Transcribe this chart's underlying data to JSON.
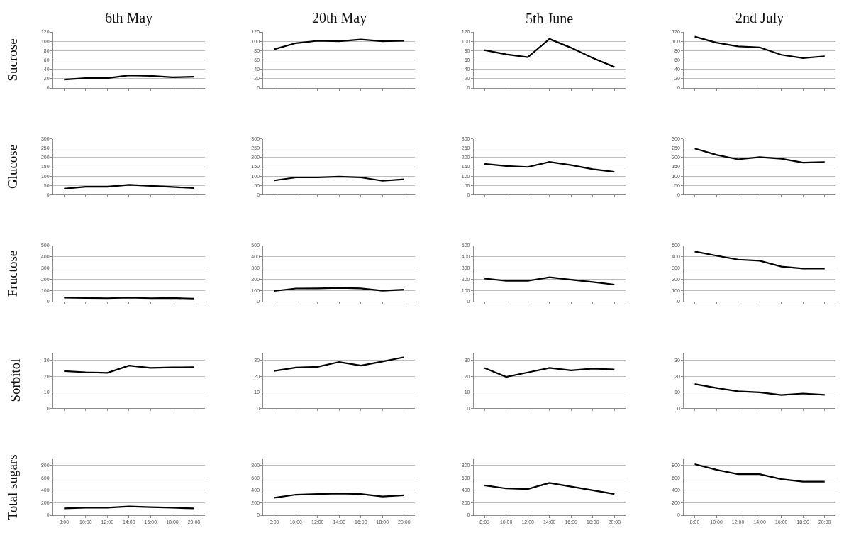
{
  "chart_data": [
    {
      "type": "line",
      "title": "6th May",
      "ylabel": "Sucrose",
      "categories": [
        null,
        null,
        null,
        null,
        null,
        null,
        null
      ],
      "series": [
        {
          "color": "#000000",
          "values": [
            18,
            21,
            21,
            27,
            26,
            23,
            24
          ]
        }
      ],
      "ylim": [
        0,
        120
      ],
      "yticks": [
        0,
        20,
        40,
        60,
        80,
        100,
        120
      ],
      "grid": "y",
      "marker": "none"
    },
    {
      "type": "line",
      "title": "20th May",
      "categories": [
        null,
        null,
        null,
        null,
        null,
        null,
        null
      ],
      "series": [
        {
          "color": "#000000",
          "values": [
            83,
            96,
            101,
            100,
            104,
            100,
            101
          ]
        }
      ],
      "ylim": [
        0,
        120
      ],
      "yticks": [
        0,
        20,
        40,
        60,
        80,
        100,
        120
      ],
      "grid": "y",
      "marker": "none"
    },
    {
      "type": "line",
      "title": "5th June",
      "categories": [
        null,
        null,
        null,
        null,
        null,
        null,
        null
      ],
      "series": [
        {
          "color": "#000000",
          "values": [
            81,
            72,
            66,
            105,
            86,
            64,
            45
          ]
        }
      ],
      "ylim": [
        0,
        120
      ],
      "yticks": [
        0,
        20,
        40,
        60,
        80,
        100,
        120
      ],
      "grid": "y",
      "marker": "none"
    },
    {
      "type": "line",
      "title": "2nd July",
      "categories": [
        null,
        null,
        null,
        null,
        null,
        null,
        null
      ],
      "series": [
        {
          "color": "#000000",
          "values": [
            110,
            97,
            89,
            87,
            71,
            64,
            68
          ]
        }
      ],
      "ylim": [
        0,
        120
      ],
      "yticks": [
        0,
        20,
        40,
        60,
        80,
        100,
        120
      ],
      "grid": "y",
      "marker": "none"
    },
    {
      "type": "line",
      "ylabel": "Glucose",
      "categories": [
        null,
        null,
        null,
        null,
        null,
        null,
        null
      ],
      "series": [
        {
          "color": "#000000",
          "values": [
            33,
            43,
            43,
            54,
            48,
            42,
            36
          ]
        }
      ],
      "ylim": [
        0,
        300
      ],
      "yticks": [
        0,
        50,
        100,
        150,
        200,
        250,
        300
      ],
      "grid": "y",
      "marker": "none"
    },
    {
      "type": "line",
      "categories": [
        null,
        null,
        null,
        null,
        null,
        null,
        null
      ],
      "series": [
        {
          "color": "#000000",
          "values": [
            77,
            93,
            93,
            97,
            93,
            75,
            83
          ]
        }
      ],
      "ylim": [
        0,
        300
      ],
      "yticks": [
        0,
        50,
        100,
        150,
        200,
        250,
        300
      ],
      "grid": "y",
      "marker": "none"
    },
    {
      "type": "line",
      "categories": [
        null,
        null,
        null,
        null,
        null,
        null,
        null
      ],
      "series": [
        {
          "color": "#000000",
          "values": [
            166,
            154,
            149,
            176,
            159,
            137,
            123
          ]
        }
      ],
      "ylim": [
        0,
        300
      ],
      "yticks": [
        0,
        50,
        100,
        150,
        200,
        250,
        300
      ],
      "grid": "y",
      "marker": "none"
    },
    {
      "type": "line",
      "categories": [
        null,
        null,
        null,
        null,
        null,
        null,
        null
      ],
      "series": [
        {
          "color": "#000000",
          "values": [
            248,
            214,
            190,
            202,
            193,
            172,
            175
          ]
        }
      ],
      "ylim": [
        0,
        300
      ],
      "yticks": [
        0,
        50,
        100,
        150,
        200,
        250,
        300
      ],
      "grid": "y",
      "marker": "none"
    },
    {
      "type": "line",
      "ylabel": "Fructose",
      "categories": [
        null,
        null,
        null,
        null,
        null,
        null,
        null
      ],
      "series": [
        {
          "color": "#000000",
          "values": [
            35,
            33,
            30,
            35,
            30,
            32,
            27
          ]
        }
      ],
      "ylim": [
        0,
        500
      ],
      "yticks": [
        0,
        100,
        200,
        300,
        400,
        500
      ],
      "grid": "y",
      "marker": "none"
    },
    {
      "type": "line",
      "categories": [
        null,
        null,
        null,
        null,
        null,
        null,
        null
      ],
      "series": [
        {
          "color": "#000000",
          "values": [
            95,
            117,
            118,
            122,
            118,
            97,
            107
          ]
        }
      ],
      "ylim": [
        0,
        500
      ],
      "yticks": [
        0,
        100,
        200,
        300,
        400,
        500
      ],
      "grid": "y",
      "marker": "none"
    },
    {
      "type": "line",
      "categories": [
        null,
        null,
        null,
        null,
        null,
        null,
        null
      ],
      "series": [
        {
          "color": "#000000",
          "values": [
            207,
            185,
            185,
            217,
            196,
            175,
            152
          ]
        }
      ],
      "ylim": [
        0,
        500
      ],
      "yticks": [
        0,
        100,
        200,
        300,
        400,
        500
      ],
      "grid": "y",
      "marker": "none"
    },
    {
      "type": "line",
      "categories": [
        null,
        null,
        null,
        null,
        null,
        null,
        null
      ],
      "series": [
        {
          "color": "#000000",
          "values": [
            447,
            410,
            375,
            365,
            313,
            295,
            295
          ]
        }
      ],
      "ylim": [
        0,
        500
      ],
      "yticks": [
        0,
        100,
        200,
        300,
        400,
        500
      ],
      "grid": "y",
      "marker": "none"
    },
    {
      "type": "line",
      "ylabel": "Sorbitol",
      "categories": [
        null,
        null,
        null,
        null,
        null,
        null,
        null
      ],
      "series": [
        {
          "color": "#000000",
          "values": [
            23.3,
            22.6,
            22.2,
            26.7,
            25.3,
            25.6,
            25.8
          ]
        }
      ],
      "ylim": [
        0,
        35
      ],
      "yticks": [
        0,
        10,
        20,
        30
      ],
      "grid": "y",
      "marker": "none"
    },
    {
      "type": "line",
      "categories": [
        null,
        null,
        null,
        null,
        null,
        null,
        null
      ],
      "series": [
        {
          "color": "#000000",
          "values": [
            23.4,
            25.5,
            26,
            29,
            26.8,
            29.3,
            32
          ]
        }
      ],
      "ylim": [
        0,
        35
      ],
      "yticks": [
        0,
        10,
        20,
        30
      ],
      "grid": "y",
      "marker": "none"
    },
    {
      "type": "line",
      "categories": [
        null,
        null,
        null,
        null,
        null,
        null,
        null
      ],
      "series": [
        {
          "color": "#000000",
          "values": [
            25.3,
            19.7,
            22.5,
            25.3,
            23.8,
            24.9,
            24.3
          ]
        }
      ],
      "ylim": [
        0,
        35
      ],
      "yticks": [
        0,
        10,
        20,
        30
      ],
      "grid": "y",
      "marker": "none"
    },
    {
      "type": "line",
      "categories": [
        null,
        null,
        null,
        null,
        null,
        null,
        null
      ],
      "series": [
        {
          "color": "#000000",
          "values": [
            15.2,
            12.8,
            10.7,
            10,
            8.4,
            9.3,
            8.5
          ]
        }
      ],
      "ylim": [
        0,
        35
      ],
      "yticks": [
        0,
        10,
        20,
        30
      ],
      "grid": "y",
      "marker": "none"
    },
    {
      "type": "line",
      "ylabel": "Total sugars",
      "categories": [
        "8:00",
        "10:00",
        "12:00",
        "14:00",
        "16:00",
        "18:00",
        "20:00"
      ],
      "series": [
        {
          "color": "#000000",
          "values": [
            110,
            120,
            120,
            140,
            130,
            120,
            110
          ]
        }
      ],
      "ylim": [
        0,
        900
      ],
      "yticks": [
        0,
        200,
        400,
        600,
        800
      ],
      "grid": "y",
      "marker": "none"
    },
    {
      "type": "line",
      "categories": [
        "8:00",
        "10:00",
        "12:00",
        "14:00",
        "16:00",
        "18:00",
        "20:00"
      ],
      "series": [
        {
          "color": "#000000",
          "values": [
            280,
            330,
            340,
            350,
            340,
            300,
            320
          ]
        }
      ],
      "ylim": [
        0,
        900
      ],
      "yticks": [
        0,
        200,
        400,
        600,
        800
      ],
      "grid": "y",
      "marker": "none"
    },
    {
      "type": "line",
      "categories": [
        "8:00",
        "10:00",
        "12:00",
        "14:00",
        "16:00",
        "18:00",
        "20:00"
      ],
      "series": [
        {
          "color": "#000000",
          "values": [
            480,
            430,
            420,
            520,
            460,
            400,
            340
          ]
        }
      ],
      "ylim": [
        0,
        900
      ],
      "yticks": [
        0,
        200,
        400,
        600,
        800
      ],
      "grid": "y",
      "marker": "none"
    },
    {
      "type": "line",
      "categories": [
        "8:00",
        "10:00",
        "12:00",
        "14:00",
        "16:00",
        "18:00",
        "20:00"
      ],
      "series": [
        {
          "color": "#000000",
          "values": [
            820,
            730,
            660,
            660,
            580,
            540,
            540
          ]
        }
      ],
      "ylim": [
        0,
        900
      ],
      "yticks": [
        0,
        200,
        400,
        600,
        800
      ],
      "grid": "y",
      "marker": "none"
    }
  ]
}
